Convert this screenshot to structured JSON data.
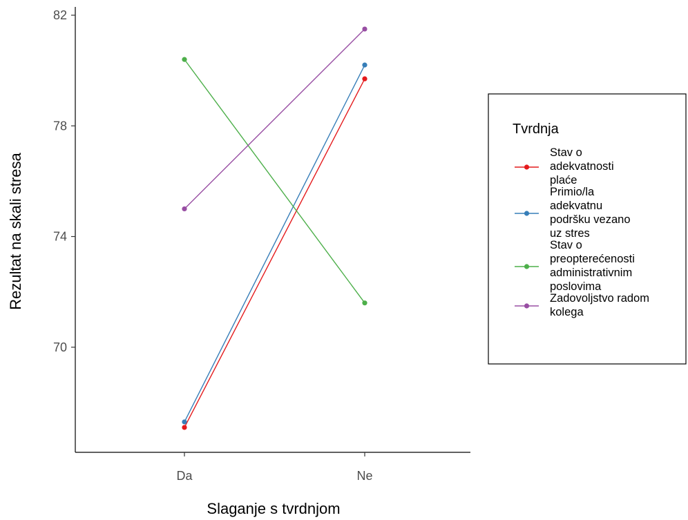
{
  "chart_data": {
    "type": "line",
    "x": [
      "Da",
      "Ne"
    ],
    "xlabel": "Slaganje s tvrdnjom",
    "ylabel": "Rezultat na skali stresa",
    "ylim": [
      66.2,
      82.3
    ],
    "yticks": [
      70,
      74,
      78,
      82
    ],
    "legend_title": "Tvrdnja",
    "legend_position": "right",
    "grid": false,
    "series": [
      {
        "name": "Stav o adekvatnosti plaće",
        "label_lines": [
          "Stav o",
          "adekvatnosti",
          "plaće"
        ],
        "color": "#e41a1c",
        "values": [
          67.1,
          79.7
        ]
      },
      {
        "name": "Primio/la adekvatnu podršku vezano uz stres",
        "label_lines": [
          "Primio/la",
          "adekvatnu",
          "podršku vezano",
          "uz stres"
        ],
        "color": "#377eb8",
        "values": [
          67.3,
          80.2
        ]
      },
      {
        "name": "Stav o preopterećenosti administrativnim poslovima",
        "label_lines": [
          "Stav o",
          "preopterećenosti",
          "administrativnim",
          "poslovima"
        ],
        "color": "#4daf4a",
        "values": [
          80.4,
          71.6
        ]
      },
      {
        "name": "Zadovoljstvo radom kolega",
        "label_lines": [
          "Zadovoljstvo radom",
          "kolega"
        ],
        "color": "#984ea3",
        "values": [
          75.0,
          81.5
        ]
      }
    ]
  }
}
